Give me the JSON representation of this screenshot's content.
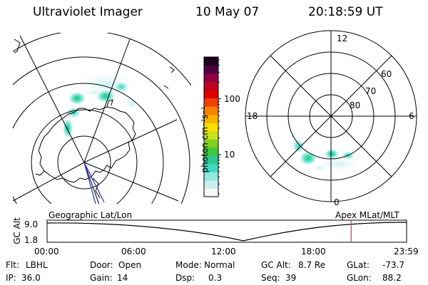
{
  "header": {
    "instrument": "Ultraviolet Imager",
    "date": "10 May 07",
    "time": "20:18:59 UT"
  },
  "colorbar": {
    "label": "photon cm⁻²s⁻¹",
    "ticks": [
      {
        "value": 100,
        "label": "100"
      },
      {
        "value": 10,
        "label": "10"
      }
    ],
    "scale": "log",
    "colors": [
      "#f8f8f8",
      "#c8f0f0",
      "#90e8e0",
      "#40d8c0",
      "#30c890",
      "#40c840",
      "#80d020",
      "#c8e020",
      "#f8e000",
      "#f8b000",
      "#f88000",
      "#f04000",
      "#e00000",
      "#c00020",
      "#900040",
      "#500040",
      "#200020"
    ]
  },
  "left_map": {
    "label": "Geographic Lat/Lon"
  },
  "right_map": {
    "label": "Apex MLat/MLT",
    "mlt_labels": [
      "12",
      "18",
      "6",
      "0"
    ],
    "mlat_labels": [
      "60",
      "70",
      "80"
    ]
  },
  "timeline": {
    "ylabel": "GC Alt",
    "yticks": [
      "9.0",
      "1.8"
    ],
    "xticks": [
      "00:00",
      "06:00",
      "12:00",
      "18:00",
      "23:59"
    ],
    "current_marker_hours": 20.3,
    "marker_color": "#c04060"
  },
  "info": {
    "flt_label": "Flt:",
    "flt_value": "LBHL",
    "door_label": "Door:",
    "door_value": "Open",
    "mode_label": "Mode:",
    "mode_value": "Normal",
    "gcalt_label": "GC Alt:",
    "gcalt_value": "8.7 Re",
    "glat_label": "GLat:",
    "glat_value": "-73.7",
    "ip_label": "IP:",
    "ip_value": "36.0",
    "gain_label": "Gain:",
    "gain_value": "14",
    "dsp_label": "Dsp:",
    "dsp_value": "0.3",
    "seq_label": "Seq:",
    "seq_value": "39",
    "glon_label": "GLon:",
    "glon_value": "88.2"
  }
}
